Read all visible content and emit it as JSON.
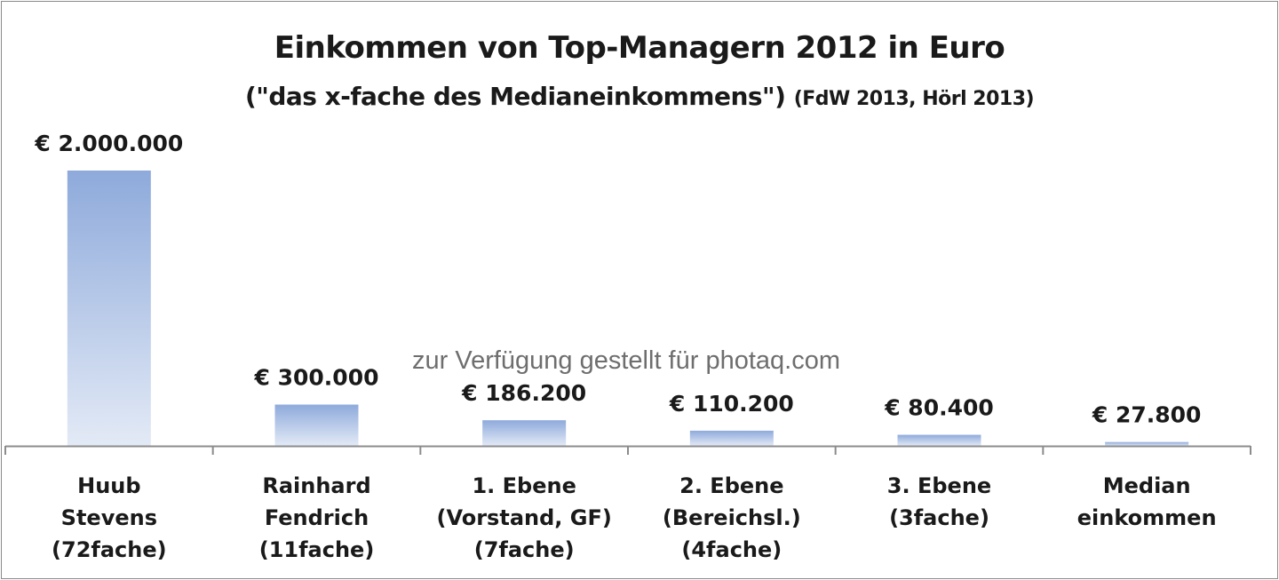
{
  "chart_data": {
    "type": "bar",
    "title": "Einkommen von Top-Managern  2012 in Euro",
    "subtitle": "(\"das x-fache des Medianeinkommens\")",
    "source": "(FdW 2013, Hörl 2013)",
    "categories": [
      [
        "Huub",
        "Stevens",
        "(72fache)"
      ],
      [
        "Rainhard",
        "Fendrich",
        "(11fache)"
      ],
      [
        "1. Ebene",
        "(Vorstand, GF)",
        "(7fache)"
      ],
      [
        "2. Ebene",
        "(Bereichsl.)",
        "(4fache)"
      ],
      [
        "3. Ebene",
        "(3fache)"
      ],
      [
        "Median",
        "einkommen"
      ]
    ],
    "values": [
      2000000,
      300000,
      186200,
      110200,
      80400,
      27800
    ],
    "data_labels": [
      "€ 2.000.000",
      "€ 300.000",
      "€ 186.200",
      "€ 110.200",
      "€ 80.400",
      "€ 27.800"
    ],
    "xlabel": "",
    "ylabel": "",
    "ylim": [
      0,
      2000000
    ],
    "grid": false,
    "legend": "none",
    "bar_color_top": "#8eaadb",
    "bar_color_bottom": "#e3eaf6"
  },
  "watermark": "zur Verfügung gestellt für photaq.com"
}
